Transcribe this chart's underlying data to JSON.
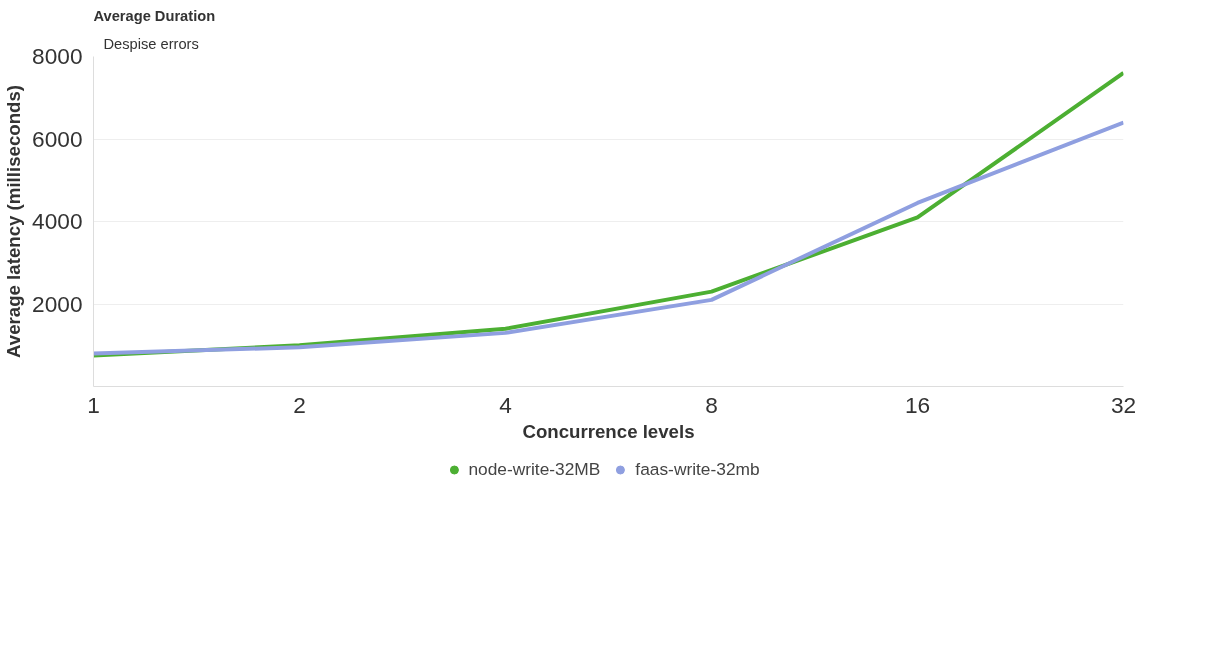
{
  "chart_data": {
    "type": "line",
    "title": "Average Duration",
    "xlabel": "Concurrence levels",
    "ylabel": "Average latency (milliseconds)",
    "annotations": [
      "Despise errors"
    ],
    "categories": [
      "1",
      "2",
      "4",
      "8",
      "16",
      "32"
    ],
    "series": [
      {
        "name": "node-write-32MB",
        "color": "#4caf32",
        "values": [
          750,
          1000,
          1400,
          2300,
          4100,
          7600
        ]
      },
      {
        "name": "faas-write-32mb",
        "color": "#8f9fe0",
        "values": [
          800,
          950,
          1300,
          2100,
          4450,
          6400
        ]
      }
    ],
    "ylim": [
      0,
      8000
    ],
    "yticks": [
      2000,
      4000,
      6000,
      8000
    ],
    "grid": "y",
    "legend": "bottom",
    "line_style": "solid"
  }
}
